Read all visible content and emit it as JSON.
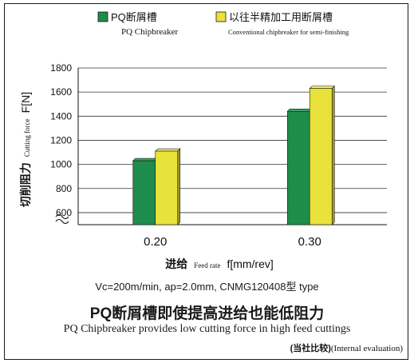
{
  "chart_data": {
    "type": "bar",
    "categories": [
      "0.20",
      "0.30"
    ],
    "series": [
      {
        "name": "PQ断屑槽",
        "subname": "PQ Chipbreaker",
        "values": [
          1030,
          1440
        ],
        "color": "#1e8c4a"
      },
      {
        "name": "以往半精加工用断屑槽",
        "subname": "Conventional chipbreaker for semi-finishing",
        "values": [
          1110,
          1630
        ],
        "color": "#e8e23a"
      }
    ],
    "ylim": [
      500,
      1800
    ],
    "yticks": [
      600,
      800,
      1000,
      1200,
      1400,
      1600,
      1800
    ],
    "grid": true,
    "legend_position": "top",
    "axis_break": true,
    "ylabel": {
      "cn": "切削阻力",
      "en": "Cutting force",
      "unit": "F[N]"
    },
    "xlabel": {
      "cn": "进给",
      "en": "Feed rate",
      "unit": "f[mm/rev]"
    }
  },
  "conditions": "Vc=200m/min, ap=2.0mm, CNMG120408型 type",
  "headline": "PQ断屑槽即使提高进给也能低阻力",
  "subheadline": "PQ Chipbreaker provides low cutting force in high feed cuttings",
  "note": {
    "cn": "(当社比较)",
    "en": "(Internal evaluation)"
  }
}
